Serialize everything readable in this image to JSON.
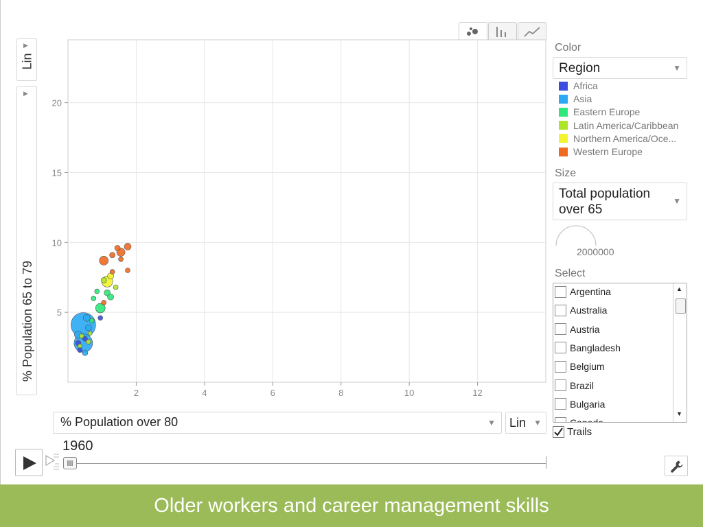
{
  "view_tabs": [
    {
      "name": "bubble-chart-tab",
      "icon": "scatter-icon",
      "active": true
    },
    {
      "name": "bar-chart-tab",
      "icon": "bar-chart-icon",
      "active": false
    },
    {
      "name": "line-chart-tab",
      "icon": "line-chart-icon",
      "active": false
    }
  ],
  "y_axis": {
    "scale_label": "Lin",
    "title": "% Population 65 to 79"
  },
  "x_axis": {
    "title": "% Population over 80",
    "scale_label": "Lin"
  },
  "time": {
    "year": "1960"
  },
  "color": {
    "label": "Color",
    "selected": "Region",
    "legend": [
      {
        "label": "Africa",
        "color": "#3b4cde"
      },
      {
        "label": "Asia",
        "color": "#2aaaf5"
      },
      {
        "label": "Eastern Europe",
        "color": "#2ee87a"
      },
      {
        "label": "Latin America/Caribbean",
        "color": "#aee52a"
      },
      {
        "label": "Northern America/Oce...",
        "color": "#f3f32e"
      },
      {
        "label": "Western Europe",
        "color": "#f06a22"
      }
    ]
  },
  "size": {
    "label": "Size",
    "selected_line1": "Total population",
    "selected_line2": "over 65",
    "scale_value": "2000000"
  },
  "select": {
    "label": "Select",
    "items": [
      "Argentina",
      "Australia",
      "Austria",
      "Bangladesh",
      "Belgium",
      "Brazil",
      "Bulgaria",
      "Canada"
    ]
  },
  "trails": {
    "label": "Trails",
    "checked": true
  },
  "footer": {
    "title": "Older workers and career management skills"
  },
  "chart_data": {
    "type": "scatter",
    "xlabel": "% Population over 80",
    "ylabel": "% Population 65 to 79",
    "xlim": [
      0,
      14
    ],
    "ylim": [
      0,
      24.5
    ],
    "xticks": [
      2,
      4,
      6,
      8,
      10,
      12
    ],
    "yticks": [
      5,
      10,
      15,
      20
    ],
    "grid": true,
    "points": [
      {
        "x": 0.45,
        "y": 4.1,
        "size": 36,
        "region": "Asia"
      },
      {
        "x": 0.45,
        "y": 2.8,
        "size": 27,
        "region": "Asia"
      },
      {
        "x": 0.3,
        "y": 3.4,
        "size": 11,
        "region": "Asia"
      },
      {
        "x": 0.55,
        "y": 4.6,
        "size": 10,
        "region": "Asia"
      },
      {
        "x": 0.6,
        "y": 3.9,
        "size": 9,
        "region": "Asia"
      },
      {
        "x": 0.5,
        "y": 2.1,
        "size": 8,
        "region": "Asia"
      },
      {
        "x": 0.95,
        "y": 5.3,
        "size": 14,
        "region": "Eastern Europe"
      },
      {
        "x": 1.15,
        "y": 6.4,
        "size": 9,
        "region": "Eastern Europe"
      },
      {
        "x": 1.25,
        "y": 6.1,
        "size": 9,
        "region": "Eastern Europe"
      },
      {
        "x": 0.85,
        "y": 6.5,
        "size": 7,
        "region": "Eastern Europe"
      },
      {
        "x": 0.75,
        "y": 6.0,
        "size": 7,
        "region": "Eastern Europe"
      },
      {
        "x": 0.7,
        "y": 4.4,
        "size": 7,
        "region": "Eastern Europe"
      },
      {
        "x": 1.15,
        "y": 7.2,
        "size": 16,
        "region": "Northern America/Oce..."
      },
      {
        "x": 1.25,
        "y": 7.6,
        "size": 9,
        "region": "Northern America/Oce..."
      },
      {
        "x": 1.4,
        "y": 6.8,
        "size": 7,
        "region": "Latin America/Caribbean"
      },
      {
        "x": 0.6,
        "y": 2.9,
        "size": 7,
        "region": "Latin America/Caribbean"
      },
      {
        "x": 0.4,
        "y": 3.3,
        "size": 7,
        "region": "Latin America/Caribbean"
      },
      {
        "x": 0.65,
        "y": 3.5,
        "size": 6,
        "region": "Latin America/Caribbean"
      },
      {
        "x": 0.35,
        "y": 2.6,
        "size": 6,
        "region": "Latin America/Caribbean"
      },
      {
        "x": 1.05,
        "y": 7.3,
        "size": 8,
        "region": "Latin America/Caribbean"
      },
      {
        "x": 0.3,
        "y": 2.8,
        "size": 8,
        "region": "Africa"
      },
      {
        "x": 0.5,
        "y": 3.1,
        "size": 7,
        "region": "Africa"
      },
      {
        "x": 0.35,
        "y": 2.3,
        "size": 7,
        "region": "Africa"
      },
      {
        "x": 0.95,
        "y": 4.6,
        "size": 7,
        "region": "Africa"
      },
      {
        "x": 1.05,
        "y": 8.7,
        "size": 13,
        "region": "Western Europe"
      },
      {
        "x": 1.55,
        "y": 9.3,
        "size": 12,
        "region": "Western Europe"
      },
      {
        "x": 1.75,
        "y": 9.7,
        "size": 10,
        "region": "Western Europe"
      },
      {
        "x": 1.45,
        "y": 9.6,
        "size": 8,
        "region": "Western Europe"
      },
      {
        "x": 1.3,
        "y": 9.1,
        "size": 8,
        "region": "Western Europe"
      },
      {
        "x": 1.55,
        "y": 8.8,
        "size": 7,
        "region": "Western Europe"
      },
      {
        "x": 1.75,
        "y": 8.0,
        "size": 7,
        "region": "Western Europe"
      },
      {
        "x": 1.3,
        "y": 7.9,
        "size": 7,
        "region": "Western Europe"
      },
      {
        "x": 1.05,
        "y": 5.7,
        "size": 7,
        "region": "Western Europe"
      }
    ]
  }
}
